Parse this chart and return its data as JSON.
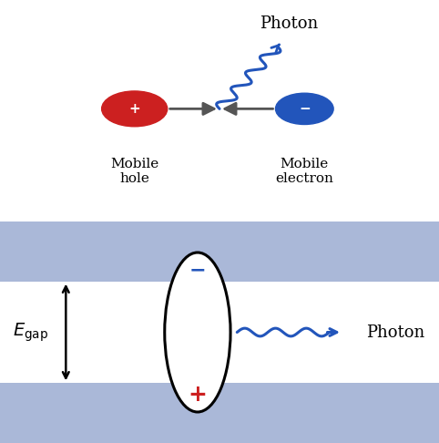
{
  "bg_color": "#ffffff",
  "top_panel_bg": "#d0d0d0",
  "hole_color": "#cc2020",
  "electron_color": "#2255bb",
  "wavy_color": "#2255bb",
  "photon_label_top": "Photon",
  "mobile_hole_label": "Mobile\nhole",
  "mobile_electron_label": "Mobile\nelectron",
  "band_color": "#aab8d8",
  "Egap_label": "$E_{\\mathrm{gap}}$",
  "photon_label_bottom": "Photon",
  "arrow_gray": "#555555"
}
